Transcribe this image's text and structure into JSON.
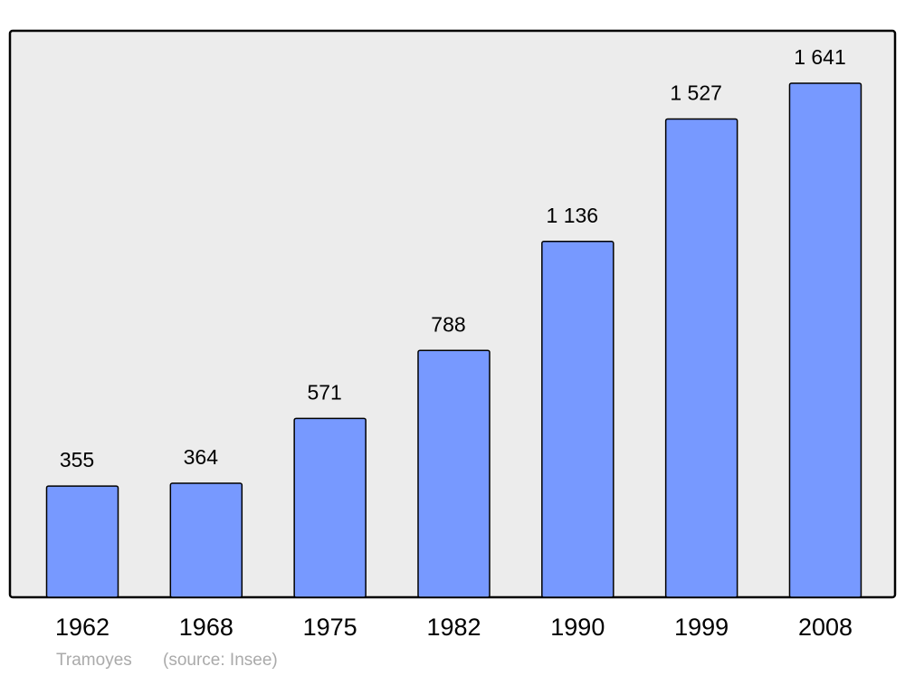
{
  "chart_data": {
    "type": "bar",
    "categories": [
      "1962",
      "1968",
      "1975",
      "1982",
      "1990",
      "1999",
      "2008"
    ],
    "values": [
      355,
      364,
      571,
      788,
      1136,
      1527,
      1641
    ],
    "value_labels": [
      "355",
      "364",
      "571",
      "788",
      "1 136",
      "1 527",
      "1 641"
    ],
    "color": "#7799ff",
    "place": "Tramoyes",
    "source": "(source: Insee)"
  }
}
